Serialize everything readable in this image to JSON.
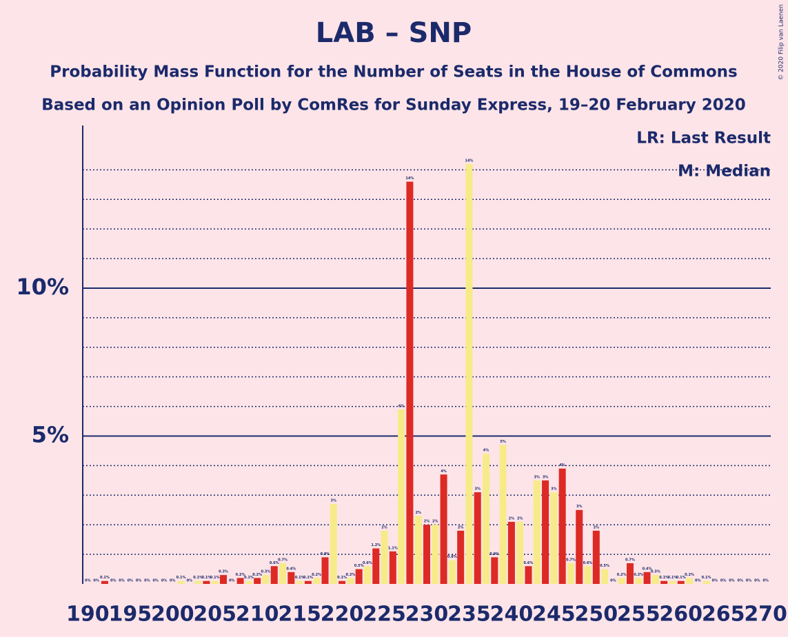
{
  "chart_data": {
    "type": "bar",
    "title": "LAB – SNP",
    "subtitle": "Probability Mass Function for the Number of Seats in the House of Commons",
    "subtitle2": "Based on an Opinion Poll by ComRes for Sunday Express, 19–20 February 2020",
    "legend": [
      "LR: Last Result",
      "M: Median"
    ],
    "copyright": "© 2020 Filip van Laenen",
    "colors": [
      "#dd2a24",
      "#f7eb89"
    ],
    "x": [
      190,
      191,
      192,
      193,
      194,
      195,
      196,
      197,
      198,
      199,
      200,
      201,
      202,
      203,
      204,
      205,
      206,
      207,
      208,
      209,
      210,
      211,
      212,
      213,
      214,
      215,
      216,
      217,
      218,
      219,
      220,
      221,
      222,
      223,
      224,
      225,
      226,
      227,
      228,
      229,
      230,
      231,
      232,
      233,
      234,
      235,
      236,
      237,
      238,
      239,
      240,
      241,
      242,
      243,
      244,
      245,
      246,
      247,
      248,
      249,
      250,
      251,
      252,
      253,
      254,
      255,
      256,
      257,
      258,
      259,
      260,
      261,
      262,
      263,
      264,
      265,
      266,
      267,
      268,
      269,
      270
    ],
    "values": [
      0,
      0,
      0.1,
      0,
      0,
      0,
      0,
      0,
      0,
      0,
      0,
      0.1,
      0,
      0.1,
      0.1,
      0.1,
      0.3,
      0,
      0.2,
      0.1,
      0.2,
      0.3,
      0.6,
      0.7,
      0.4,
      0.1,
      0.1,
      0.2,
      0.9,
      2.7,
      0.1,
      0.2,
      0.5,
      0.6,
      1.2,
      1.8,
      1.1,
      5.9,
      13.6,
      2.3,
      2.0,
      2.0,
      3.7,
      0.8,
      1.8,
      14.2,
      3.1,
      4.4,
      0.9,
      4.7,
      2.1,
      2.1,
      0.6,
      3.5,
      3.5,
      3.1,
      3.9,
      0.7,
      2.5,
      0.6,
      1.8,
      0.5,
      0,
      0.2,
      0.7,
      0.2,
      0.4,
      0.3,
      0.1,
      0.1,
      0.1,
      0.2,
      0,
      0.1,
      0,
      0,
      0,
      0,
      0,
      0,
      0
    ],
    "value_labels": [
      "0%",
      "0%",
      "0.1%",
      "0%",
      "0%",
      "0%",
      "0%",
      "0%",
      "0%",
      "0%",
      "0%",
      "0.1%",
      "0%",
      "0.1%",
      "0.1%",
      "0.1%",
      "0.3%",
      "0%",
      "0.2%",
      "0.1%",
      "0.2%",
      "0.3%",
      "0.6%",
      "0.7%",
      "0.4%",
      "0.1%",
      "0.1%",
      "0.2%",
      "0.9%",
      "3%",
      "0.1%",
      "0.2%",
      "0.5%",
      "0.6%",
      "1.2%",
      "2%",
      "1.1%",
      "6%",
      "14%",
      "2%",
      "2%",
      "2%",
      "4%",
      "0.8%",
      "2%",
      "14%",
      "3%",
      "4%",
      "0.9%",
      "5%",
      "2%",
      "2%",
      "0.6%",
      "3%",
      "3%",
      "3%",
      "4%",
      "0.7%",
      "3%",
      "0.6%",
      "2%",
      "0.5%",
      "0%",
      "0.2%",
      "0.7%",
      "0.2%",
      "0.4%",
      "0.3%",
      "0.1%",
      "0.1%",
      "0.1%",
      "0.2%",
      "0%",
      "0.1%",
      "0%",
      "0%",
      "0%",
      "0%",
      "0%",
      "0%",
      "0%"
    ],
    "xlim": [
      189.4,
      270.6
    ],
    "xticks": [
      190,
      195,
      200,
      205,
      210,
      215,
      220,
      225,
      230,
      235,
      240,
      245,
      250,
      255,
      260,
      265,
      270
    ],
    "ylim": [
      0,
      15.5
    ],
    "yticks": [
      {
        "value": 5,
        "label": "5%"
      },
      {
        "value": 10,
        "label": "10%"
      }
    ],
    "minor_yticks": [
      1,
      2,
      3,
      4,
      6,
      7,
      8,
      9,
      11,
      12,
      13,
      14
    ]
  }
}
